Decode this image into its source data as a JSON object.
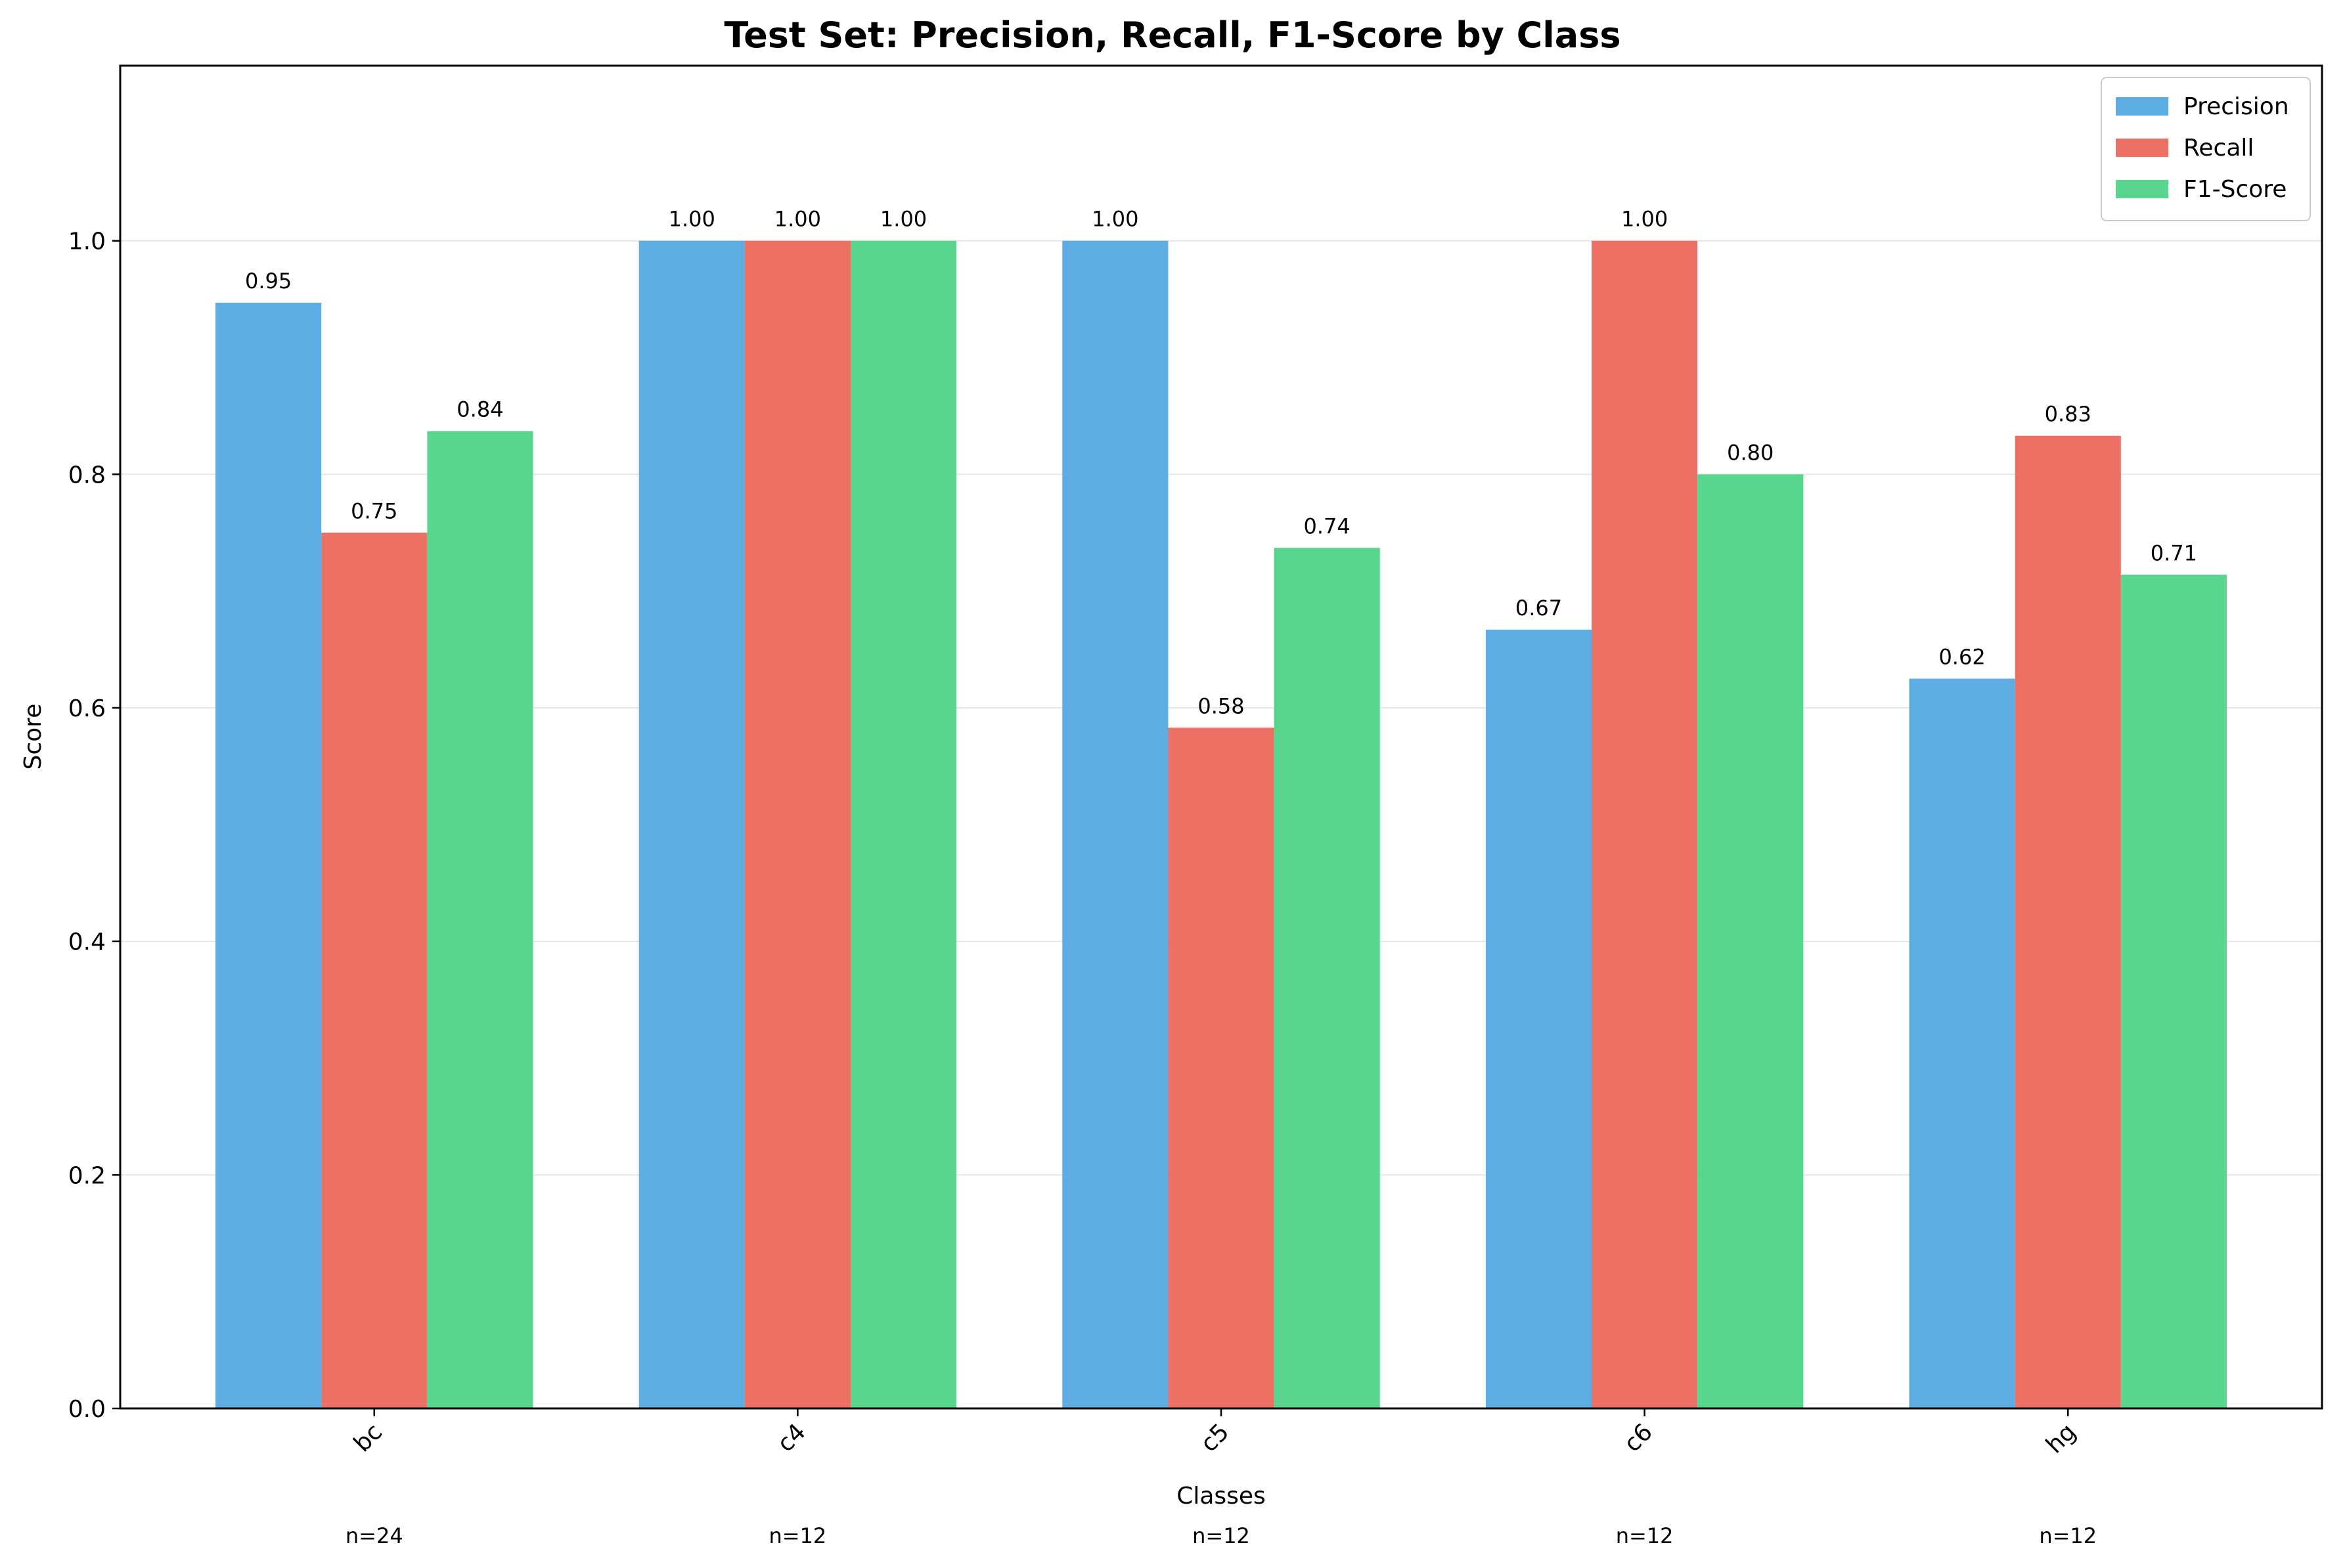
{
  "chart_data": {
    "type": "bar",
    "title": "Test Set: Precision, Recall, F1-Score by Class",
    "xlabel": "Classes",
    "ylabel": "Score",
    "ylim": [
      0,
      1.15
    ],
    "yticks": [
      "0.0",
      "0.2",
      "0.4",
      "0.6",
      "0.8",
      "1.0"
    ],
    "grid": "y",
    "legend_position": "top-right",
    "categories": [
      "bc",
      "c4",
      "c5",
      "c6",
      "hg"
    ],
    "sample_counts": [
      "n=24",
      "n=12",
      "n=12",
      "n=12",
      "n=12"
    ],
    "series": [
      {
        "name": "Precision",
        "color": "#5DADE2",
        "values": [
          0.947,
          1.0,
          1.0,
          0.667,
          0.625
        ],
        "labels": [
          "0.95",
          "1.00",
          "1.00",
          "0.67",
          "0.62"
        ]
      },
      {
        "name": "Recall",
        "color": "#EC7063",
        "values": [
          0.75,
          1.0,
          0.583,
          1.0,
          0.833
        ],
        "labels": [
          "0.75",
          "1.00",
          "0.58",
          "1.00",
          "0.83"
        ]
      },
      {
        "name": "F1-Score",
        "color": "#58D68D",
        "values": [
          0.837,
          1.0,
          0.737,
          0.8,
          0.714
        ],
        "labels": [
          "0.84",
          "1.00",
          "0.74",
          "0.80",
          "0.71"
        ]
      }
    ]
  }
}
